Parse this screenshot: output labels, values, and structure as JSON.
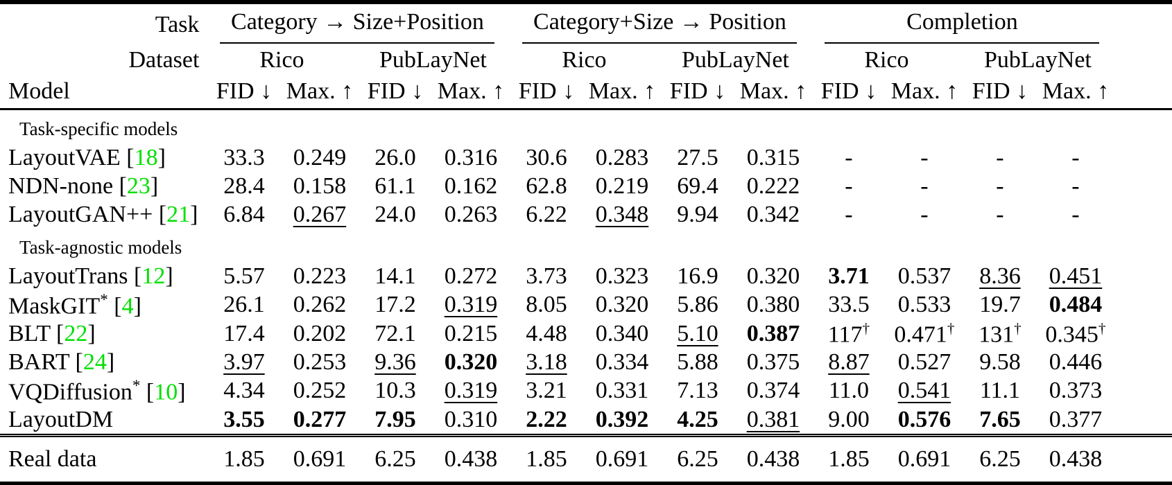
{
  "colors": {
    "citation": "#00DF00"
  },
  "table": {
    "header": {
      "task_label": "Task",
      "dataset_label": "Dataset",
      "model_label": "Model",
      "groups": [
        {
          "label": "Category → Size+Position",
          "datasets": [
            "Rico",
            "PubLayNet"
          ]
        },
        {
          "label": "Category+Size → Position",
          "datasets": [
            "Rico",
            "PubLayNet"
          ]
        },
        {
          "label": "Completion",
          "datasets": [
            "Rico",
            "PubLayNet"
          ]
        }
      ],
      "metrics": {
        "fid": "FID ↓",
        "max": "Max. ↑"
      }
    },
    "sections": [
      {
        "label": "Task-specific models",
        "rows": [
          {
            "model": "LayoutVAE",
            "citation": "18",
            "values": [
              {
                "v": "33.3"
              },
              {
                "v": "0.249"
              },
              {
                "v": "26.0"
              },
              {
                "v": "0.316"
              },
              {
                "v": "30.6"
              },
              {
                "v": "0.283"
              },
              {
                "v": "27.5"
              },
              {
                "v": "0.315"
              },
              {
                "v": "-"
              },
              {
                "v": "-"
              },
              {
                "v": "-"
              },
              {
                "v": "-"
              }
            ]
          },
          {
            "model": "NDN-none",
            "citation": "23",
            "values": [
              {
                "v": "28.4"
              },
              {
                "v": "0.158"
              },
              {
                "v": "61.1"
              },
              {
                "v": "0.162"
              },
              {
                "v": "62.8"
              },
              {
                "v": "0.219"
              },
              {
                "v": "69.4"
              },
              {
                "v": "0.222"
              },
              {
                "v": "-"
              },
              {
                "v": "-"
              },
              {
                "v": "-"
              },
              {
                "v": "-"
              }
            ]
          },
          {
            "model": "LayoutGAN++",
            "citation": "21",
            "values": [
              {
                "v": "6.84"
              },
              {
                "v": "0.267",
                "style": "underline"
              },
              {
                "v": "24.0"
              },
              {
                "v": "0.263"
              },
              {
                "v": "6.22"
              },
              {
                "v": "0.348",
                "style": "underline"
              },
              {
                "v": "9.94"
              },
              {
                "v": "0.342"
              },
              {
                "v": "-"
              },
              {
                "v": "-"
              },
              {
                "v": "-"
              },
              {
                "v": "-"
              }
            ]
          }
        ]
      },
      {
        "label": "Task-agnostic models",
        "rows": [
          {
            "model": "LayoutTrans",
            "citation": "12",
            "values": [
              {
                "v": "5.57"
              },
              {
                "v": "0.223"
              },
              {
                "v": "14.1"
              },
              {
                "v": "0.272"
              },
              {
                "v": "3.73"
              },
              {
                "v": "0.323"
              },
              {
                "v": "16.9"
              },
              {
                "v": "0.320"
              },
              {
                "v": "3.71",
                "style": "bold"
              },
              {
                "v": "0.537"
              },
              {
                "v": "8.36",
                "style": "underline"
              },
              {
                "v": "0.451",
                "style": "underline"
              }
            ]
          },
          {
            "model": "MaskGIT",
            "model_sup": "*",
            "citation": "4",
            "values": [
              {
                "v": "26.1"
              },
              {
                "v": "0.262"
              },
              {
                "v": "17.2"
              },
              {
                "v": "0.319",
                "style": "underline"
              },
              {
                "v": "8.05"
              },
              {
                "v": "0.320"
              },
              {
                "v": "5.86"
              },
              {
                "v": "0.380"
              },
              {
                "v": "33.5"
              },
              {
                "v": "0.533"
              },
              {
                "v": "19.7"
              },
              {
                "v": "0.484",
                "style": "bold"
              }
            ]
          },
          {
            "model": "BLT",
            "citation": "22",
            "values": [
              {
                "v": "17.4"
              },
              {
                "v": "0.202"
              },
              {
                "v": "72.1"
              },
              {
                "v": "0.215"
              },
              {
                "v": "4.48"
              },
              {
                "v": "0.340"
              },
              {
                "v": "5.10",
                "style": "underline"
              },
              {
                "v": "0.387",
                "style": "bold"
              },
              {
                "v": "117",
                "sup": "†"
              },
              {
                "v": "0.471",
                "sup": "†"
              },
              {
                "v": "131",
                "sup": "†"
              },
              {
                "v": "0.345",
                "sup": "†"
              }
            ]
          },
          {
            "model": "BART",
            "citation": "24",
            "values": [
              {
                "v": "3.97",
                "style": "underline"
              },
              {
                "v": "0.253"
              },
              {
                "v": "9.36",
                "style": "underline"
              },
              {
                "v": "0.320",
                "style": "bold"
              },
              {
                "v": "3.18",
                "style": "underline"
              },
              {
                "v": "0.334"
              },
              {
                "v": "5.88"
              },
              {
                "v": "0.375"
              },
              {
                "v": "8.87",
                "style": "underline"
              },
              {
                "v": "0.527"
              },
              {
                "v": "9.58"
              },
              {
                "v": "0.446"
              }
            ]
          },
          {
            "model": "VQDiffusion",
            "model_sup": "*",
            "citation": "10",
            "values": [
              {
                "v": "4.34"
              },
              {
                "v": "0.252"
              },
              {
                "v": "10.3"
              },
              {
                "v": "0.319",
                "style": "underline"
              },
              {
                "v": "3.21"
              },
              {
                "v": "0.331"
              },
              {
                "v": "7.13"
              },
              {
                "v": "0.374"
              },
              {
                "v": "11.0"
              },
              {
                "v": "0.541",
                "style": "underline"
              },
              {
                "v": "11.1"
              },
              {
                "v": "0.373"
              }
            ]
          },
          {
            "model": "LayoutDM",
            "values": [
              {
                "v": "3.55",
                "style": "bold"
              },
              {
                "v": "0.277",
                "style": "bold"
              },
              {
                "v": "7.95",
                "style": "bold"
              },
              {
                "v": "0.310"
              },
              {
                "v": "2.22",
                "style": "bold"
              },
              {
                "v": "0.392",
                "style": "bold"
              },
              {
                "v": "4.25",
                "style": "bold"
              },
              {
                "v": "0.381",
                "style": "underline"
              },
              {
                "v": "9.00"
              },
              {
                "v": "0.576",
                "style": "bold"
              },
              {
                "v": "7.65",
                "style": "bold"
              },
              {
                "v": "0.377"
              }
            ]
          }
        ]
      }
    ],
    "footer": {
      "label": "Real data",
      "values": [
        {
          "v": "1.85"
        },
        {
          "v": "0.691"
        },
        {
          "v": "6.25"
        },
        {
          "v": "0.438"
        },
        {
          "v": "1.85"
        },
        {
          "v": "0.691"
        },
        {
          "v": "6.25"
        },
        {
          "v": "0.438"
        },
        {
          "v": "1.85"
        },
        {
          "v": "0.691"
        },
        {
          "v": "6.25"
        },
        {
          "v": "0.438"
        }
      ]
    }
  }
}
